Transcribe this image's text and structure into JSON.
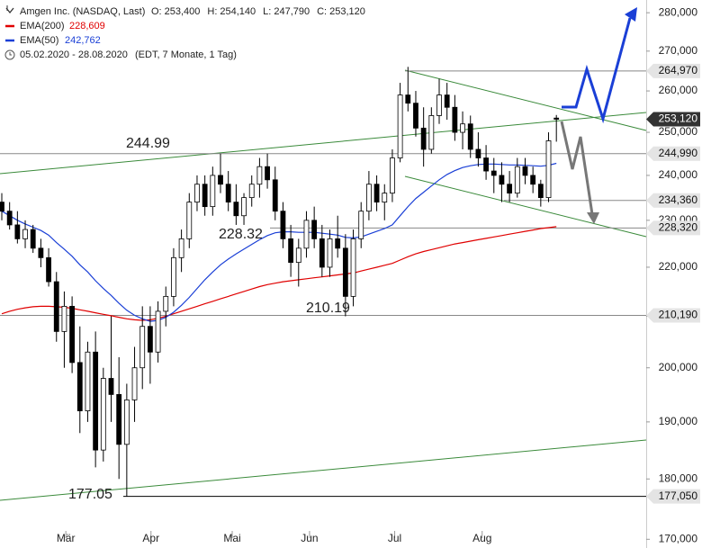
{
  "chart_data": {
    "type": "candlestick",
    "title": "Amgen Inc. (NASDAQ, Last)",
    "ohlc_header": [
      {
        "label": "O:",
        "value": "253,400"
      },
      {
        "label": "H:",
        "value": "254,140"
      },
      {
        "label": "L:",
        "value": "247,790"
      },
      {
        "label": "C:",
        "value": "253,120"
      }
    ],
    "date_range": "05.02.2020 - 28.08.2020",
    "date_note": "(EDT, 7 Monate, 1 Tag)",
    "log_scale": true,
    "xlim": [
      -0.23,
      82.5
    ],
    "xticks": [
      {
        "value": 8.2,
        "label": "Mär"
      },
      {
        "value": 19.1,
        "label": "Apr"
      },
      {
        "value": 29.5,
        "label": "Mai"
      },
      {
        "value": 39.4,
        "label": "Jun"
      },
      {
        "value": 50.3,
        "label": "Jul"
      },
      {
        "value": 61.5,
        "label": "Aug"
      }
    ],
    "ylim": [
      168600,
      283400
    ],
    "yticks": [
      {
        "value": 170000,
        "label": "170,000"
      },
      {
        "value": 180000,
        "label": "180,000"
      },
      {
        "value": 190000,
        "label": "190,000"
      },
      {
        "value": 200000,
        "label": "200,000"
      },
      {
        "value": 210000,
        "label": "210,000"
      },
      {
        "value": 220000,
        "label": "220,000"
      },
      {
        "value": 230000,
        "label": "230,000"
      },
      {
        "value": 240000,
        "label": "240,000"
      },
      {
        "value": 250000,
        "label": "250,000"
      },
      {
        "value": 260000,
        "label": "260,000"
      },
      {
        "value": 270000,
        "label": "270,000"
      },
      {
        "value": 280000,
        "label": "280,000"
      }
    ],
    "candles": {
      "x": [
        0,
        1,
        2,
        3,
        4,
        5,
        6,
        7,
        8,
        9,
        10,
        11,
        12,
        13,
        14,
        15,
        16,
        17,
        18,
        19,
        20,
        21,
        22,
        23,
        24,
        25,
        26,
        27,
        28,
        29,
        30,
        31,
        32,
        33,
        34,
        35,
        36,
        37,
        38,
        39,
        40,
        41,
        42,
        43,
        44,
        45,
        46,
        47,
        48,
        49,
        50,
        51,
        52,
        53,
        54,
        55,
        56,
        57,
        58,
        59,
        60,
        61,
        62,
        63,
        64,
        65,
        66,
        67,
        68,
        69,
        70,
        71
      ],
      "open": [
        234000,
        232000,
        229000,
        226000,
        228000,
        224000,
        222000,
        217000,
        207000,
        212000,
        201000,
        192000,
        203000,
        185000,
        198000,
        195000,
        186000,
        194000,
        200000,
        208000,
        203000,
        211000,
        214000,
        222000,
        226000,
        234000,
        238000,
        233000,
        240000,
        238000,
        234000,
        231000,
        235000,
        238000,
        242000,
        239000,
        232000,
        226000,
        221000,
        224000,
        230000,
        226000,
        220000,
        226000,
        224000,
        214000,
        226000,
        232000,
        238000,
        234000,
        236000,
        244000,
        259000,
        257000,
        251000,
        246000,
        254000,
        259000,
        256000,
        250000,
        252000,
        246000,
        244000,
        241000,
        240000,
        238000,
        236000,
        242000,
        240000,
        238000,
        235000,
        253400
      ],
      "high": [
        236000,
        234000,
        232000,
        230000,
        229000,
        226000,
        224000,
        219000,
        215000,
        214000,
        208000,
        205000,
        207000,
        200000,
        210000,
        202000,
        197000,
        204000,
        212000,
        212000,
        213000,
        216000,
        224000,
        228000,
        236000,
        240000,
        240000,
        242000,
        245000,
        241000,
        238000,
        236000,
        240000,
        244000,
        245000,
        242000,
        234000,
        229000,
        226000,
        232000,
        233000,
        229000,
        228000,
        231000,
        227000,
        228000,
        234000,
        241000,
        240000,
        238000,
        246000,
        262000,
        266000,
        260000,
        256000,
        256000,
        263000,
        262000,
        259000,
        255000,
        254000,
        250000,
        247000,
        244000,
        243000,
        241000,
        244000,
        244000,
        242000,
        239000,
        250000,
        254140
      ],
      "low": [
        230000,
        228000,
        225000,
        224000,
        223000,
        220000,
        216000,
        205000,
        200000,
        199000,
        188000,
        190000,
        182000,
        183000,
        190000,
        180000,
        177050,
        190000,
        196000,
        197000,
        201000,
        208000,
        212000,
        219000,
        224000,
        232000,
        231000,
        231000,
        236000,
        232000,
        229000,
        229000,
        233000,
        235000,
        237000,
        230000,
        224000,
        218000,
        216000,
        222000,
        224000,
        218000,
        218000,
        222000,
        210000,
        212000,
        224000,
        230000,
        232000,
        230000,
        234000,
        243000,
        255000,
        249000,
        242000,
        245000,
        252000,
        253000,
        248000,
        246000,
        244000,
        242000,
        239000,
        236000,
        234000,
        234000,
        235000,
        238000,
        236000,
        233000,
        234000,
        247790
      ],
      "close": [
        232000,
        229000,
        226000,
        228000,
        224000,
        222000,
        217000,
        207000,
        212000,
        201000,
        192000,
        203000,
        185000,
        198000,
        195000,
        186000,
        194000,
        200000,
        208000,
        203000,
        211000,
        214000,
        222000,
        226000,
        234000,
        238000,
        233000,
        240000,
        238000,
        234000,
        231000,
        235000,
        238000,
        242000,
        239000,
        232000,
        226000,
        221000,
        224000,
        230000,
        226000,
        220000,
        226000,
        224000,
        214000,
        226000,
        232000,
        238000,
        234000,
        236000,
        244000,
        259000,
        257000,
        251000,
        246000,
        254000,
        259000,
        256000,
        250000,
        252000,
        246000,
        244000,
        241000,
        240000,
        238000,
        236000,
        242000,
        240000,
        238000,
        235000,
        248000,
        253120
      ]
    },
    "series": [
      {
        "name": "EMA(200)",
        "color": "#e00000",
        "value_label": "228,609",
        "values": [
          210500,
          211000,
          211400,
          211700,
          211900,
          212000,
          212000,
          211900,
          211800,
          211600,
          211300,
          211000,
          210700,
          210400,
          210100,
          209800,
          209500,
          209300,
          209200,
          209300,
          209600,
          210000,
          210500,
          211000,
          211500,
          212000,
          212500,
          213000,
          213500,
          214000,
          214500,
          215000,
          215500,
          216000,
          216400,
          216700,
          217000,
          217200,
          217400,
          217600,
          217800,
          218000,
          218200,
          218400,
          218600,
          218800,
          219200,
          219600,
          220000,
          220400,
          220800,
          221500,
          222200,
          222800,
          223300,
          223700,
          224100,
          224500,
          224900,
          225200,
          225500,
          225800,
          226100,
          226400,
          226700,
          227000,
          227300,
          227600,
          227900,
          228200,
          228400,
          228609
        ]
      },
      {
        "name": "EMA(50)",
        "color": "#1a3fd6",
        "value_label": "242,762",
        "values": [
          232000,
          231000,
          230000,
          229200,
          228500,
          227800,
          226800,
          225200,
          223800,
          222300,
          220500,
          219000,
          217200,
          215600,
          214200,
          212600,
          211200,
          210200,
          209500,
          209000,
          209200,
          209800,
          210800,
          212200,
          213800,
          215600,
          217400,
          219000,
          220500,
          221700,
          222800,
          223800,
          224800,
          225800,
          226700,
          227300,
          227500,
          227500,
          227400,
          227400,
          227400,
          227200,
          227000,
          226800,
          226300,
          226200,
          226400,
          227000,
          227600,
          228200,
          229000,
          231000,
          233000,
          234800,
          236200,
          237600,
          239000,
          240200,
          241100,
          241800,
          242200,
          242500,
          242600,
          242600,
          242500,
          242400,
          242400,
          242300,
          242200,
          242100,
          242300,
          242762
        ]
      }
    ],
    "levels": {
      "values": [
        264970,
        253120,
        244990,
        234360,
        228320,
        210190,
        177050
      ],
      "value_labels": [
        "264,970",
        "253,120",
        "244,990",
        "234,360",
        "228,320",
        "210,190",
        "177,050"
      ]
    },
    "annotations": [
      "244.99",
      "228.32",
      "210.19",
      "177.05"
    ]
  }
}
